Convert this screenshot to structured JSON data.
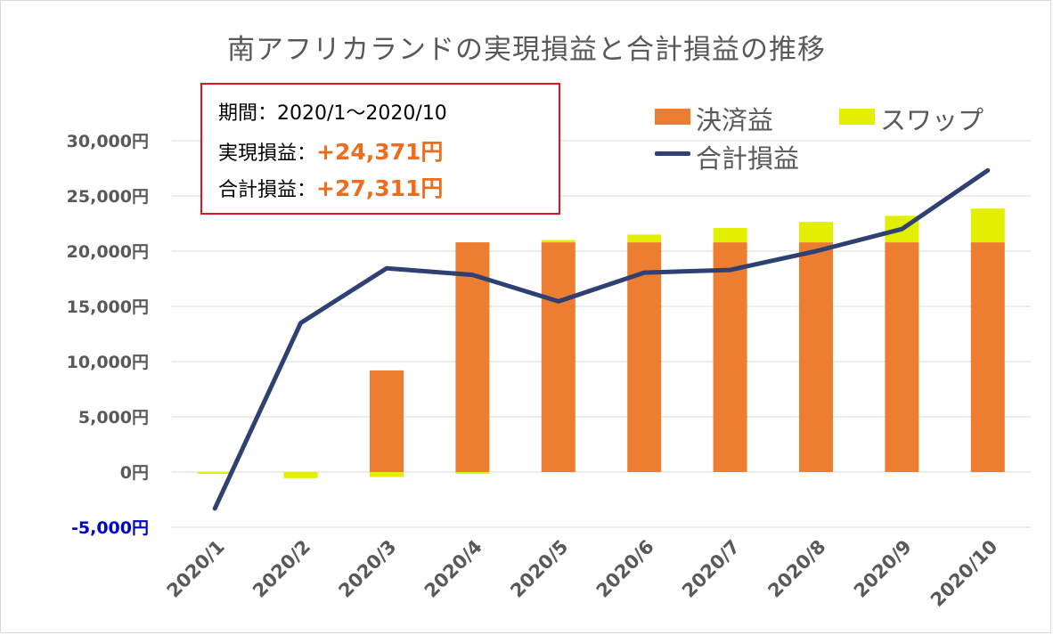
{
  "title": "南アフリカランドの実現損益と合計損益の推移",
  "info": {
    "period_label": "期間：",
    "period_value": "2020/1～2020/10",
    "realized_label": "実現損益：",
    "realized_value": "+24,371円",
    "total_label": "合計損益：",
    "total_value": "+27,311円"
  },
  "colors": {
    "settlement": "#ed7d31",
    "swap": "#e2ef00",
    "total_line": "#2e4172",
    "negative_tick": "#0000cc",
    "tick": "#595959",
    "grid": "#d9d9d9",
    "box_border": "#e0141e",
    "highlight": "#ed6d1f"
  },
  "chart_data": {
    "type": "bar",
    "title": "南アフリカランドの実現損益と合計損益の推移",
    "categories": [
      "2020/1",
      "2020/2",
      "2020/3",
      "2020/4",
      "2020/5",
      "2020/6",
      "2020/7",
      "2020/8",
      "2020/9",
      "2020/10"
    ],
    "series": [
      {
        "name": "決済益",
        "kind": "stacked-bar",
        "values": [
          0,
          0,
          9200,
          20800,
          20800,
          20800,
          20800,
          20800,
          20800,
          20800
        ]
      },
      {
        "name": "スワップ",
        "kind": "stacked-bar",
        "values": [
          -100,
          -550,
          -450,
          -100,
          200,
          700,
          1300,
          1850,
          2400,
          3050
        ]
      },
      {
        "name": "合計損益",
        "kind": "line",
        "values": [
          -3300,
          13500,
          18450,
          17850,
          15450,
          18050,
          18300,
          20000,
          22000,
          27311
        ]
      }
    ],
    "yticks": [
      -5000,
      0,
      5000,
      10000,
      15000,
      20000,
      25000,
      30000
    ],
    "ytick_labels": [
      "-5,000円",
      "0円",
      "5,000円",
      "10,000円",
      "15,000円",
      "20,000円",
      "25,000円",
      "30,000円"
    ],
    "ylim": [
      -5000,
      30000
    ],
    "grid": true,
    "legend": "top-right",
    "xlabel": "",
    "ylabel": ""
  }
}
